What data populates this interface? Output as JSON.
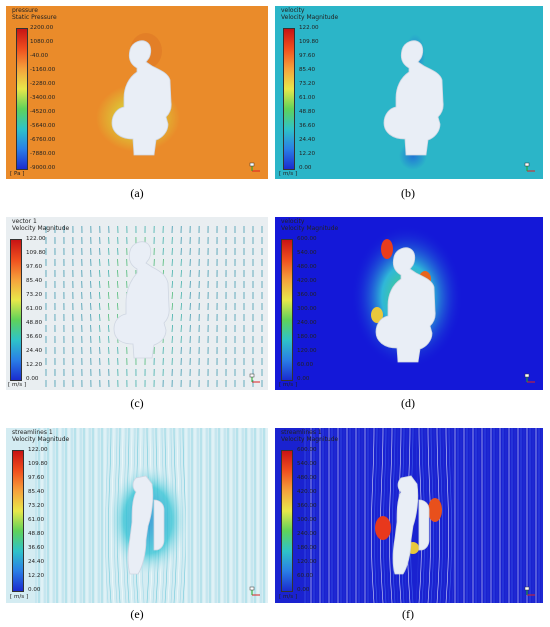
{
  "panels": [
    {
      "id": "a",
      "caption": "(a)",
      "legend_line1": "pressure",
      "legend_line2": "Static Pressure",
      "ticks": [
        "2200.00",
        "1080.00",
        "-40.00",
        "-1160.00",
        "-2280.00",
        "-3400.00",
        "-4520.00",
        "-5640.00",
        "-6760.00",
        "-7880.00",
        "-9000.00"
      ],
      "unit": "[ Pa ]",
      "background": "#ea8b2a"
    },
    {
      "id": "b",
      "caption": "(b)",
      "legend_line1": "velocity",
      "legend_line2": "Velocity Magnitude",
      "ticks": [
        "122.00",
        "109.80",
        "97.60",
        "85.40",
        "73.20",
        "61.00",
        "48.80",
        "36.60",
        "24.40",
        "12.20",
        "0.00"
      ],
      "unit": "[ m/s ]",
      "background": "#2bb5c8"
    },
    {
      "id": "c",
      "caption": "(c)",
      "legend_line1": "vector 1",
      "legend_line2": "Velocity Magnitude",
      "ticks": [
        "122.00",
        "109.80",
        "97.60",
        "85.40",
        "73.20",
        "61.00",
        "48.80",
        "36.60",
        "24.40",
        "12.20",
        "0.00"
      ],
      "unit": "[ m/s ]",
      "background": "#e9eef1"
    },
    {
      "id": "d",
      "caption": "(d)",
      "legend_line1": "velocity",
      "legend_line2": "Velocity Magnitude",
      "ticks": [
        "600.00",
        "540.00",
        "480.00",
        "420.00",
        "360.00",
        "300.00",
        "240.00",
        "180.00",
        "120.00",
        "60.00",
        "0.00"
      ],
      "unit": "[ m/s ]",
      "background": "#1418d8"
    },
    {
      "id": "e",
      "caption": "(e)",
      "legend_line1": "streamlines 1",
      "legend_line2": "Velocity Magnitude",
      "ticks": [
        "122.00",
        "109.80",
        "97.60",
        "85.40",
        "73.20",
        "61.00",
        "48.80",
        "36.60",
        "24.40",
        "12.20",
        "0.00"
      ],
      "unit": "[ m/s ]",
      "background": "#d4ecf2"
    },
    {
      "id": "f",
      "caption": "(f)",
      "legend_line1": "streamlines 1",
      "legend_line2": "Velocity Magnitude",
      "ticks": [
        "600.00",
        "540.00",
        "480.00",
        "420.00",
        "360.00",
        "300.00",
        "240.00",
        "180.00",
        "120.00",
        "60.00",
        "0.00"
      ],
      "unit": "[ m/s ]",
      "background": "#1a22d0"
    }
  ]
}
